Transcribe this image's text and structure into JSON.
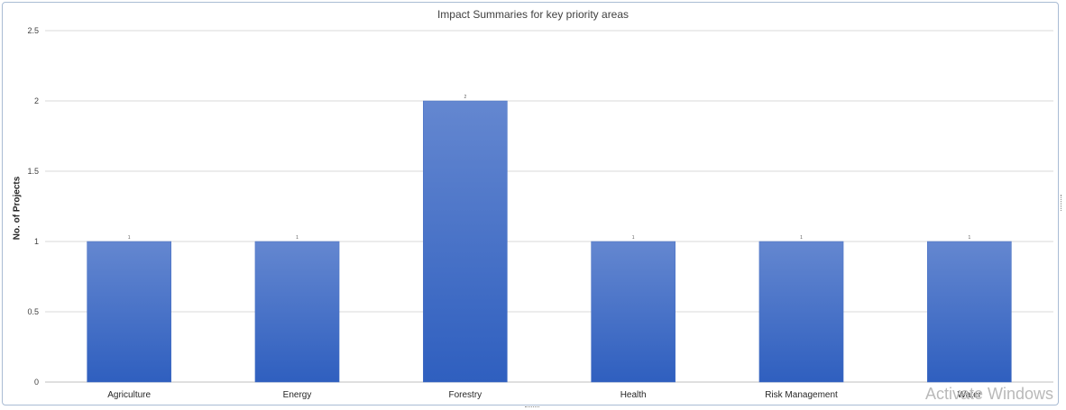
{
  "chart_data": {
    "type": "bar",
    "title": "Impact Summaries for key priority areas",
    "ylabel": "No. of Projects",
    "xlabel": "",
    "categories": [
      "Agriculture",
      "Energy",
      "Forestry",
      "Health",
      "Risk Management",
      "Water"
    ],
    "values": [
      1,
      1,
      2,
      1,
      1,
      1
    ],
    "data_labels": [
      "1",
      "1",
      "2",
      "1",
      "1",
      "1"
    ],
    "ylim": [
      0,
      2.5
    ],
    "yticks": [
      0,
      0.5,
      1,
      1.5,
      2,
      2.5
    ],
    "ytick_labels": [
      "0",
      "0.5",
      "1",
      "1.5",
      "2",
      "2.5"
    ],
    "grid": true,
    "legend": "none",
    "bar_color_top": "#6487d0",
    "bar_color_bottom": "#2f5fbf"
  },
  "watermark": {
    "text": "Activate Windows"
  }
}
